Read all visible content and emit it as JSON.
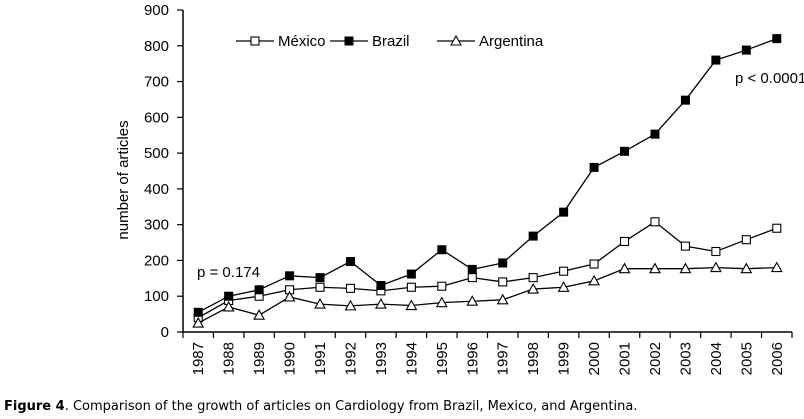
{
  "chart_data": {
    "type": "line",
    "title": "",
    "xlabel": "",
    "ylabel": "number of articles",
    "ylim": [
      0,
      900
    ],
    "yticks": [
      0,
      100,
      200,
      300,
      400,
      500,
      600,
      700,
      800,
      900
    ],
    "categories": [
      "1987",
      "1988",
      "1989",
      "1990",
      "1991",
      "1992",
      "1993",
      "1994",
      "1995",
      "1996",
      "1997",
      "1998",
      "1999",
      "2000",
      "2001",
      "2002",
      "2003",
      "2004",
      "2005",
      "2006"
    ],
    "series": [
      {
        "name": "México",
        "marker": "open-square",
        "values": [
          40,
          88,
          100,
          118,
          125,
          122,
          115,
          125,
          128,
          152,
          140,
          152,
          170,
          190,
          253,
          308,
          240,
          225,
          258,
          290
        ]
      },
      {
        "name": "Brazil",
        "marker": "filled-square",
        "values": [
          55,
          100,
          118,
          157,
          152,
          197,
          130,
          162,
          230,
          175,
          193,
          268,
          335,
          460,
          505,
          553,
          648,
          760,
          788,
          820
        ]
      },
      {
        "name": "Argentina",
        "marker": "open-triangle",
        "values": [
          25,
          70,
          47,
          98,
          78,
          73,
          78,
          74,
          82,
          86,
          90,
          120,
          125,
          143,
          177,
          177,
          177,
          180,
          177,
          180
        ]
      }
    ],
    "legend_position": "top",
    "grid": false,
    "annotations": [
      "p = 0.174",
      "p < 0.0001"
    ],
    "colors": {
      "line": "#000000",
      "background": "#ffffff"
    }
  },
  "caption": {
    "label": "Figure 4",
    "text": ". Comparison of the growth of articles on Cardiology from Brazil, Mexico, and Argentina."
  }
}
